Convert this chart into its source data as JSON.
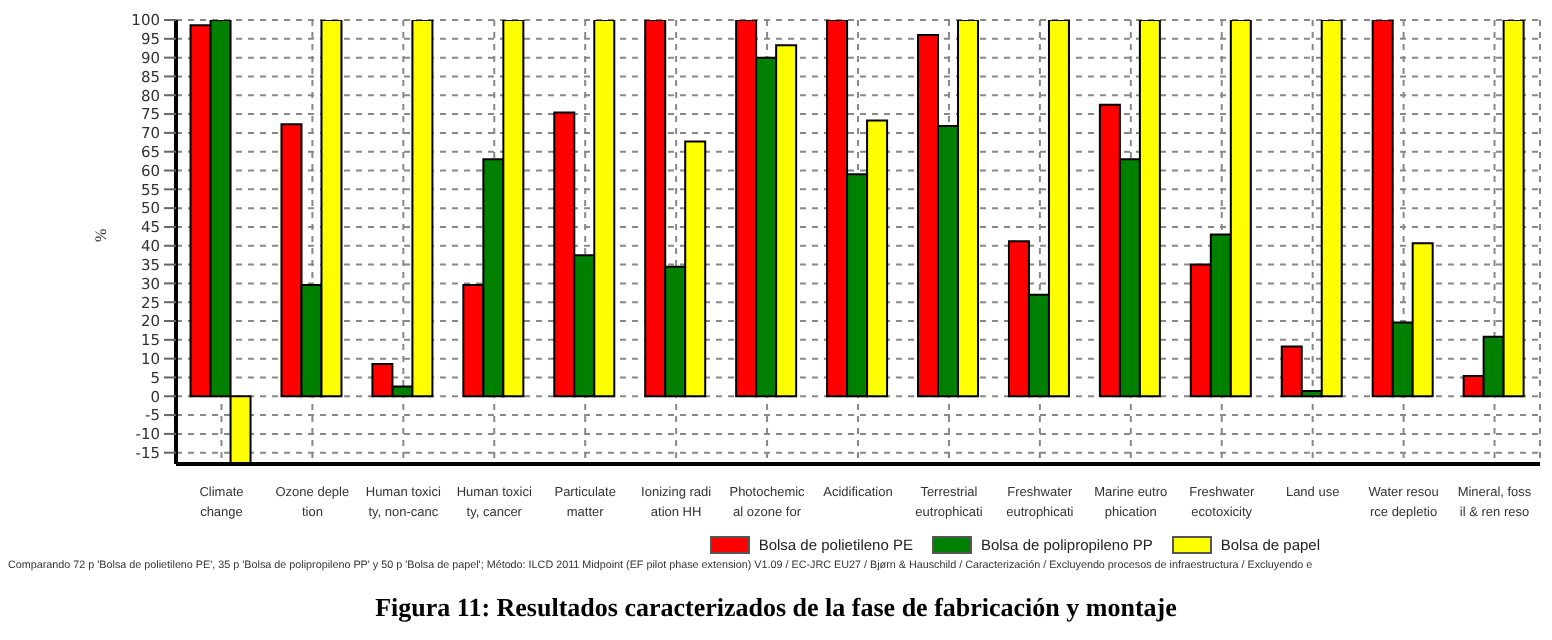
{
  "chart_data": {
    "type": "bar",
    "title": "Figura 11: Resultados caracterizados de la fase de fabricación y montaje",
    "ylabel": "%",
    "categories": [
      "Climate\nchange",
      "Ozone deple\ntion",
      "Human toxici\nty, non-canc",
      "Human toxici\nty, cancer",
      "Particulate\nmatter",
      "Ionizing radi\nation HH",
      "Photochemic\nal ozone for",
      "Acidification",
      "Terrestrial\neutrophicati",
      "Freshwater\neutrophicati",
      "Marine eutro\nphication",
      "Freshwater\necotoxicity",
      "Land use",
      "Water resou\nrce depletio",
      "Mineral, foss\nil & ren reso"
    ],
    "series": [
      {
        "name": "Bolsa de polietileno PE",
        "color": "#ff0000",
        "values": [
          98.6,
          72.3,
          8.6,
          29.6,
          75.4,
          100,
          100,
          100,
          96,
          41.2,
          77.5,
          35,
          13.2,
          100,
          5.4
        ]
      },
      {
        "name": "Bolsa de polipropileno PP",
        "color": "#008000",
        "values": [
          100,
          29.6,
          2.6,
          63,
          37.5,
          34.4,
          90,
          59,
          71.8,
          27,
          63,
          43,
          1.4,
          19.6,
          15.8
        ]
      },
      {
        "name": "Bolsa de papel",
        "color": "#ffff00",
        "values": [
          -18,
          100,
          100,
          100,
          100,
          67.7,
          93.3,
          73.3,
          100,
          100,
          100,
          100,
          100,
          40.7,
          100
        ]
      }
    ],
    "ylim": [
      -18,
      100
    ],
    "yticks": [
      -15,
      -10,
      -5,
      0,
      5,
      10,
      15,
      20,
      25,
      30,
      35,
      40,
      45,
      50,
      55,
      60,
      65,
      70,
      75,
      80,
      85,
      90,
      95,
      100
    ],
    "grid": true,
    "legend": "bottom right",
    "annotations": [
      "Comparando 72 p 'Bolsa de polietileno PE', 35 p 'Bolsa de polipropileno PP' y 50 p 'Bolsa de papel';  Método: ILCD 2011 Midpoint (EF pilot phase extension) V1.09 / EC-JRC EU27 / Bjørn & Hauschild / Caracterización / Excluyendo procesos de infraestructura / Excluyendo e"
    ]
  }
}
